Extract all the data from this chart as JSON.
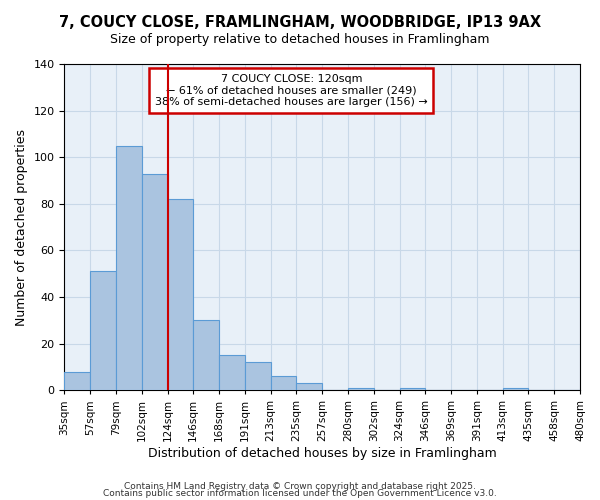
{
  "title": "7, COUCY CLOSE, FRAMLINGHAM, WOODBRIDGE, IP13 9AX",
  "subtitle": "Size of property relative to detached houses in Framlingham",
  "xlabel": "Distribution of detached houses by size in Framlingham",
  "ylabel": "Number of detached properties",
  "bar_values": [
    8,
    51,
    105,
    93,
    82,
    30,
    15,
    12,
    6,
    3,
    0,
    1,
    0,
    1,
    0,
    0,
    0,
    1,
    0,
    0
  ],
  "x_tick_labels": [
    "35sqm",
    "57sqm",
    "79sqm",
    "102sqm",
    "124sqm",
    "146sqm",
    "168sqm",
    "191sqm",
    "213sqm",
    "235sqm",
    "257sqm",
    "280sqm",
    "302sqm",
    "324sqm",
    "346sqm",
    "369sqm",
    "391sqm",
    "413sqm",
    "435sqm",
    "458sqm",
    "480sqm"
  ],
  "bar_color": "#aac4e0",
  "bar_edge_color": "#5b9bd5",
  "grid_color": "#c8d8e8",
  "background_color": "#e8f0f8",
  "vline_x": 4,
  "vline_color": "#cc0000",
  "ylim": [
    0,
    140
  ],
  "yticks": [
    0,
    20,
    40,
    60,
    80,
    100,
    120,
    140
  ],
  "annotation_title": "7 COUCY CLOSE: 120sqm",
  "annotation_line1": "← 61% of detached houses are smaller (249)",
  "annotation_line2": "38% of semi-detached houses are larger (156) →",
  "annotation_box_color": "#cc0000",
  "footnote1": "Contains HM Land Registry data © Crown copyright and database right 2025.",
  "footnote2": "Contains public sector information licensed under the Open Government Licence v3.0."
}
